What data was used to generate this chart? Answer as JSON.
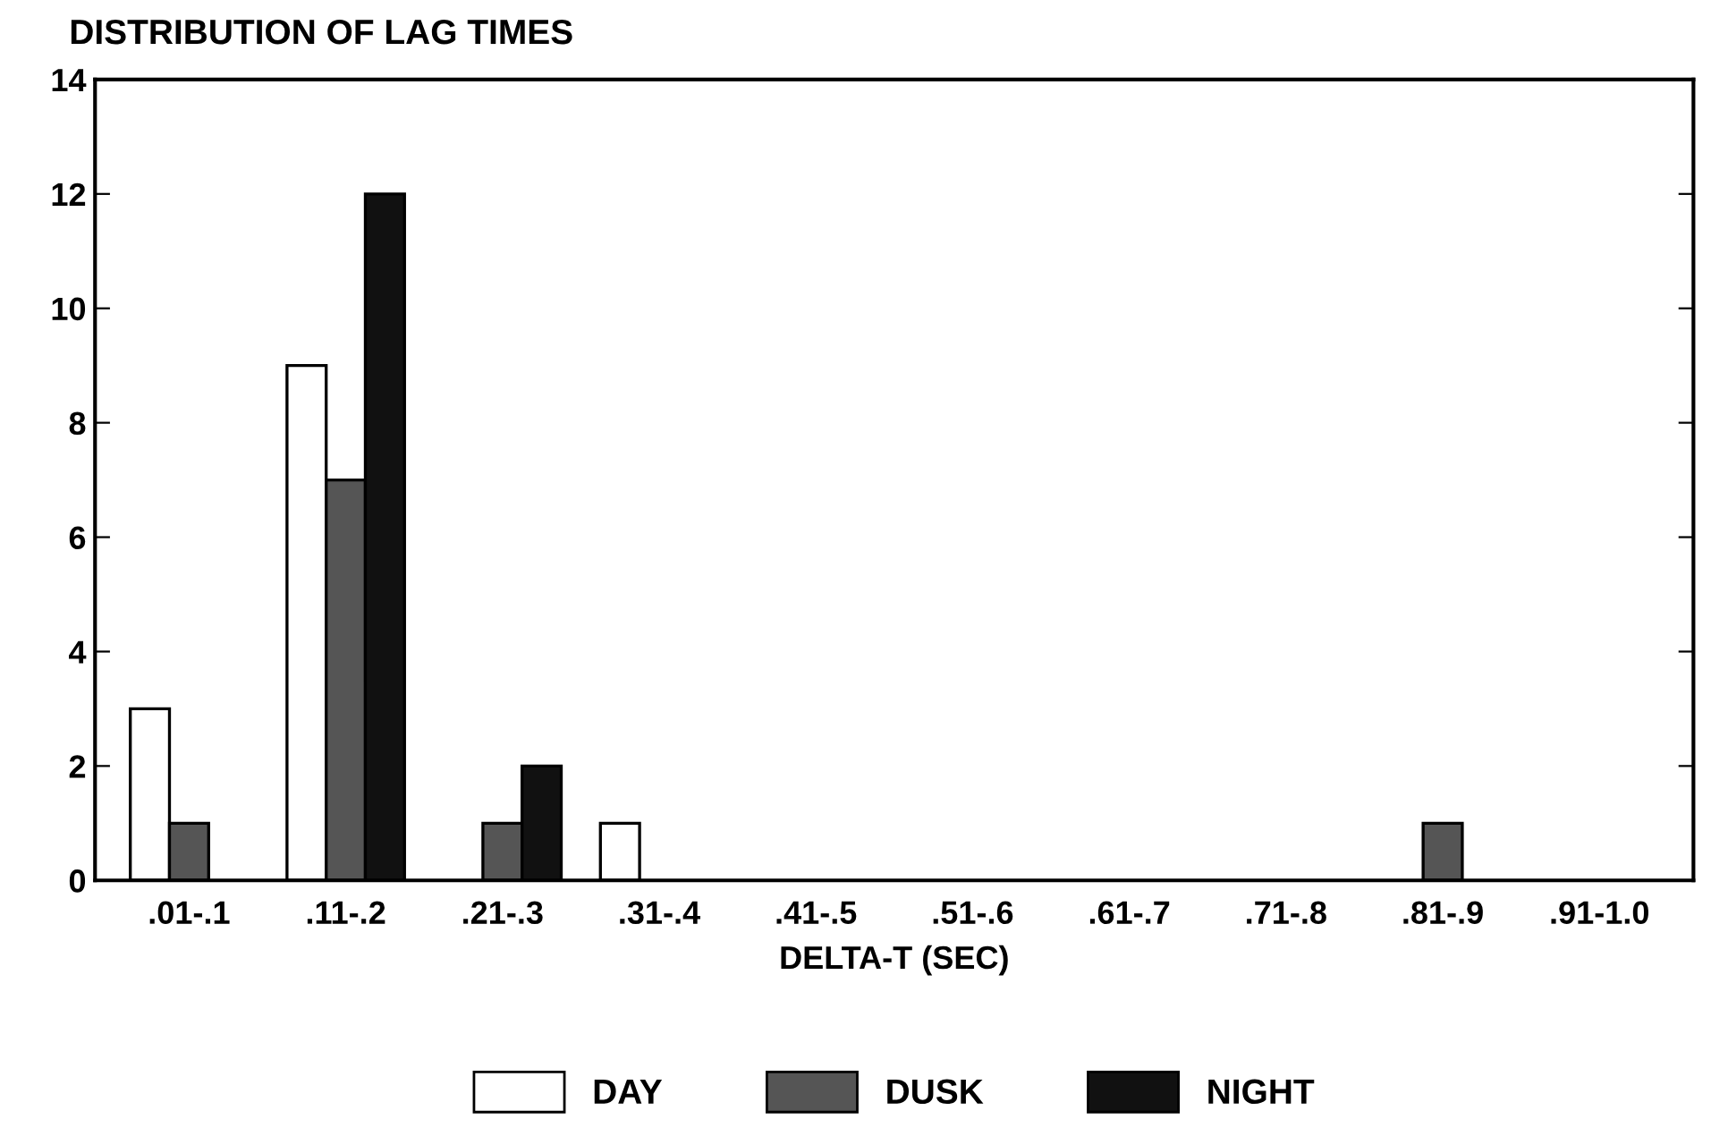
{
  "chart_data": {
    "type": "bar",
    "title": "DISTRIBUTION OF LAG TIMES",
    "xlabel": "DELTA-T (SEC)",
    "categories": [
      ".01-.1",
      ".11-.2",
      ".21-.3",
      ".31-.4",
      ".41-.5",
      ".51-.6",
      ".61-.7",
      ".71-.8",
      ".81-.9",
      ".91-1.0"
    ],
    "series": [
      {
        "name": "DAY",
        "color": "#ffffff",
        "values": [
          3,
          9,
          0,
          1,
          0,
          0,
          0,
          0,
          0,
          0
        ]
      },
      {
        "name": "DUSK",
        "color": "#555555",
        "values": [
          1,
          7,
          1,
          0,
          0,
          0,
          0,
          0,
          1,
          0
        ]
      },
      {
        "name": "NIGHT",
        "color": "#111111",
        "values": [
          0,
          12,
          2,
          0,
          0,
          0,
          0,
          0,
          0,
          0
        ]
      }
    ],
    "ylim": [
      0,
      14
    ],
    "yticks": [
      0,
      2,
      4,
      6,
      8,
      10,
      12,
      14
    ],
    "grid": false,
    "legend": "bottom"
  }
}
